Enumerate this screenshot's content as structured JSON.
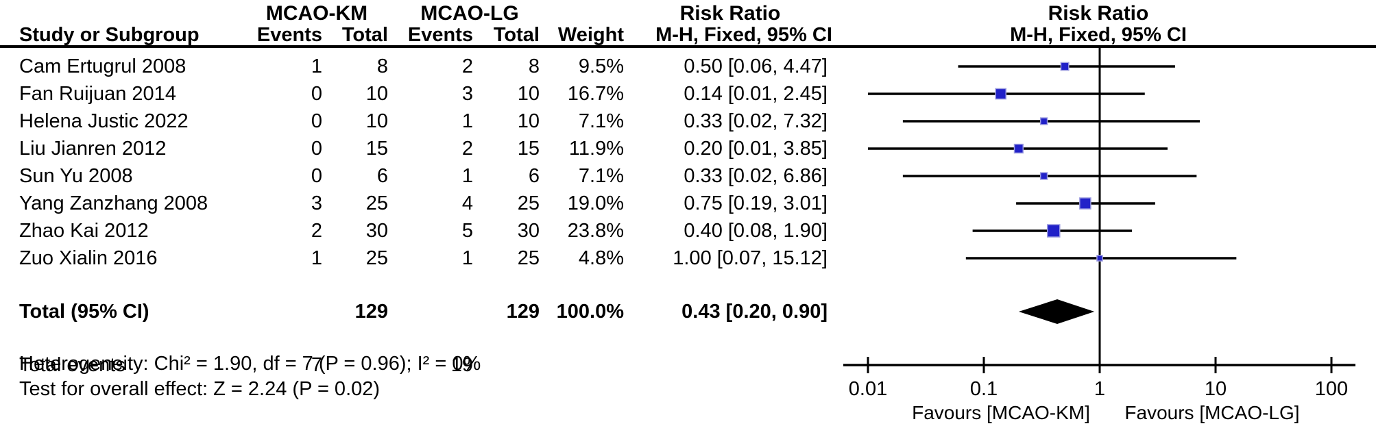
{
  "header": {
    "group_km": "MCAO-KM",
    "group_lg": "MCAO-LG",
    "risk_ratio_text_col": "Risk Ratio",
    "risk_ratio_plot_col": "Risk Ratio",
    "study_col": "Study or Subgroup",
    "events_col_1": "Events",
    "total_col_1": "Total",
    "events_col_2": "Events",
    "total_col_2": "Total",
    "weight_col": "Weight",
    "mh_text_col": "M-H, Fixed, 95% CI",
    "mh_plot_col": "M-H, Fixed, 95% CI"
  },
  "rows": [
    {
      "study": "Cam Ertugrul 2008",
      "km_events": "1",
      "km_total": "8",
      "lg_events": "2",
      "lg_total": "8",
      "weight": "9.5%",
      "rr_ci": "0.50 [0.06, 4.47]"
    },
    {
      "study": "Fan Ruijuan 2014",
      "km_events": "0",
      "km_total": "10",
      "lg_events": "3",
      "lg_total": "10",
      "weight": "16.7%",
      "rr_ci": "0.14 [0.01, 2.45]"
    },
    {
      "study": "Helena Justic 2022",
      "km_events": "0",
      "km_total": "10",
      "lg_events": "1",
      "lg_total": "10",
      "weight": "7.1%",
      "rr_ci": "0.33 [0.02, 7.32]"
    },
    {
      "study": "Liu Jianren 2012",
      "km_events": "0",
      "km_total": "15",
      "lg_events": "2",
      "lg_total": "15",
      "weight": "11.9%",
      "rr_ci": "0.20 [0.01, 3.85]"
    },
    {
      "study": "Sun Yu 2008",
      "km_events": "0",
      "km_total": "6",
      "lg_events": "1",
      "lg_total": "6",
      "weight": "7.1%",
      "rr_ci": "0.33 [0.02, 6.86]"
    },
    {
      "study": "Yang Zanzhang 2008",
      "km_events": "3",
      "km_total": "25",
      "lg_events": "4",
      "lg_total": "25",
      "weight": "19.0%",
      "rr_ci": "0.75 [0.19, 3.01]"
    },
    {
      "study": "Zhao Kai 2012",
      "km_events": "2",
      "km_total": "30",
      "lg_events": "5",
      "lg_total": "30",
      "weight": "23.8%",
      "rr_ci": "0.40 [0.08, 1.90]"
    },
    {
      "study": "Zuo Xialin 2016",
      "km_events": "1",
      "km_total": "25",
      "lg_events": "1",
      "lg_total": "25",
      "weight": "4.8%",
      "rr_ci": "1.00 [0.07, 15.12]"
    }
  ],
  "totals": {
    "label": "Total (95% CI)",
    "km_total": "129",
    "lg_total": "129",
    "weight": "100.0%",
    "rr_ci": "0.43 [0.20, 0.90]"
  },
  "total_events": {
    "label": "Total events",
    "km": "7",
    "lg": "19"
  },
  "heterogeneity": "Heterogeneity: Chi² = 1.90, df = 7 (P = 0.96); I² = 0%",
  "overall_effect": "Test for overall effect: Z = 2.24 (P = 0.02)",
  "chart_data": {
    "type": "forest",
    "x_scale": "log10",
    "xlim": [
      0.01,
      100
    ],
    "tick_values": [
      0.01,
      0.1,
      1,
      10,
      100
    ],
    "tick_labels": [
      "0.01",
      "0.1",
      "1",
      "10",
      "100"
    ],
    "null_line": 1,
    "studies": [
      {
        "name": "Cam Ertugrul 2008",
        "rr": 0.5,
        "ci_low": 0.06,
        "ci_high": 4.47,
        "weight_pct": 9.5
      },
      {
        "name": "Fan Ruijuan 2014",
        "rr": 0.14,
        "ci_low": 0.01,
        "ci_high": 2.45,
        "weight_pct": 16.7
      },
      {
        "name": "Helena Justic 2022",
        "rr": 0.33,
        "ci_low": 0.02,
        "ci_high": 7.32,
        "weight_pct": 7.1
      },
      {
        "name": "Liu Jianren 2012",
        "rr": 0.2,
        "ci_low": 0.01,
        "ci_high": 3.85,
        "weight_pct": 11.9
      },
      {
        "name": "Sun Yu 2008",
        "rr": 0.33,
        "ci_low": 0.02,
        "ci_high": 6.86,
        "weight_pct": 7.1
      },
      {
        "name": "Yang Zanzhang 2008",
        "rr": 0.75,
        "ci_low": 0.19,
        "ci_high": 3.01,
        "weight_pct": 19.0
      },
      {
        "name": "Zhao Kai 2012",
        "rr": 0.4,
        "ci_low": 0.08,
        "ci_high": 1.9,
        "weight_pct": 23.8
      },
      {
        "name": "Zuo Xialin 2016",
        "rr": 1.0,
        "ci_low": 0.07,
        "ci_high": 15.12,
        "weight_pct": 4.8
      }
    ],
    "total": {
      "rr": 0.43,
      "ci_low": 0.2,
      "ci_high": 0.9
    },
    "favours_left": "Favours [MCAO-KM]",
    "favours_right": "Favours [MCAO-LG]",
    "marker_color": "#2121c8",
    "marker_edge_color": "#9d9de0",
    "line_color": "#000000"
  }
}
